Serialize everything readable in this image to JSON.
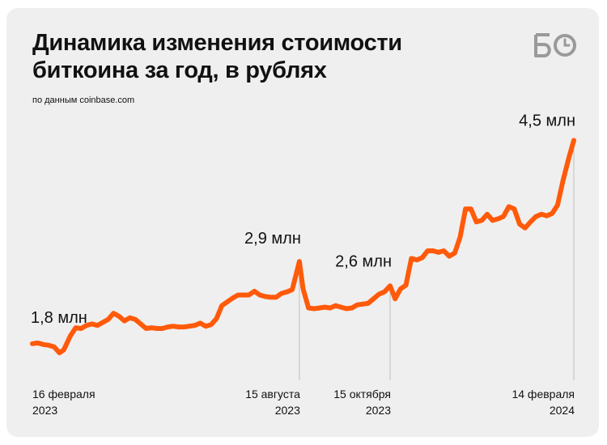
{
  "header": {
    "title_line1": "Динамика изменения стоимости",
    "title_line2": "биткоина за год, в рублях",
    "source": "по данным coinbase.com"
  },
  "logo": {
    "icon": "bo-logo-icon",
    "color": "#9a9a9a"
  },
  "colors": {
    "line": "#ff5a0a",
    "guide": "#c8c8c8",
    "text": "#111111",
    "background": "#efefef"
  },
  "chart_data": {
    "type": "line",
    "title": "Динамика изменения стоимости биткоина за год, в рублях",
    "xlabel": "",
    "ylabel": "",
    "grid": false,
    "legend": "none",
    "ylim": [
      1.3,
      4.7
    ],
    "x_ticks": [
      {
        "line1": "16 февраля",
        "line2": "2023",
        "t": 0,
        "align": "start"
      },
      {
        "line1": "15 августа",
        "line2": "2023",
        "t": 0.4931,
        "align": "end"
      },
      {
        "line1": "15 октября",
        "line2": "2023",
        "t": 0.6607,
        "align": "end"
      },
      {
        "line1": "14 февраля",
        "line2": "2024",
        "t": 1,
        "align": "end"
      }
    ],
    "callouts": [
      {
        "label": "1,8 млн",
        "t": 0,
        "value": 1.78
      },
      {
        "label": "2,9 млн",
        "t": 0.4931,
        "value": 2.86
      },
      {
        "label": "2,6 млн",
        "t": 0.6607,
        "value": 2.54
      },
      {
        "label": "4,5 млн",
        "t": 1,
        "value": 4.45
      }
    ],
    "series": [
      {
        "points": [
          [
            0.0,
            1.78
          ],
          [
            0.01,
            1.79
          ],
          [
            0.02,
            1.77
          ],
          [
            0.03,
            1.76
          ],
          [
            0.04,
            1.74
          ],
          [
            0.05,
            1.66
          ],
          [
            0.058,
            1.7
          ],
          [
            0.07,
            1.88
          ],
          [
            0.08,
            1.99
          ],
          [
            0.09,
            1.98
          ],
          [
            0.1,
            2.02
          ],
          [
            0.11,
            2.04
          ],
          [
            0.12,
            2.02
          ],
          [
            0.14,
            2.1
          ],
          [
            0.15,
            2.18
          ],
          [
            0.16,
            2.14
          ],
          [
            0.17,
            2.08
          ],
          [
            0.18,
            2.12
          ],
          [
            0.19,
            2.1
          ],
          [
            0.2,
            2.04
          ],
          [
            0.21,
            1.98
          ],
          [
            0.22,
            1.99
          ],
          [
            0.23,
            1.98
          ],
          [
            0.24,
            1.98
          ],
          [
            0.25,
            2.0
          ],
          [
            0.26,
            2.01
          ],
          [
            0.27,
            2.0
          ],
          [
            0.28,
            2.0
          ],
          [
            0.3,
            2.02
          ],
          [
            0.31,
            2.05
          ],
          [
            0.32,
            2.01
          ],
          [
            0.33,
            2.03
          ],
          [
            0.34,
            2.11
          ],
          [
            0.35,
            2.28
          ],
          [
            0.36,
            2.33
          ],
          [
            0.37,
            2.38
          ],
          [
            0.38,
            2.42
          ],
          [
            0.39,
            2.42
          ],
          [
            0.4,
            2.42
          ],
          [
            0.41,
            2.47
          ],
          [
            0.42,
            2.42
          ],
          [
            0.43,
            2.4
          ],
          [
            0.44,
            2.39
          ],
          [
            0.45,
            2.39
          ],
          [
            0.46,
            2.44
          ],
          [
            0.47,
            2.46
          ],
          [
            0.48,
            2.49
          ],
          [
            0.4931,
            2.86
          ],
          [
            0.5,
            2.5
          ],
          [
            0.51,
            2.25
          ],
          [
            0.52,
            2.24
          ],
          [
            0.53,
            2.25
          ],
          [
            0.54,
            2.26
          ],
          [
            0.55,
            2.25
          ],
          [
            0.56,
            2.28
          ],
          [
            0.57,
            2.26
          ],
          [
            0.58,
            2.24
          ],
          [
            0.59,
            2.25
          ],
          [
            0.6,
            2.29
          ],
          [
            0.61,
            2.3
          ],
          [
            0.62,
            2.31
          ],
          [
            0.63,
            2.37
          ],
          [
            0.64,
            2.43
          ],
          [
            0.65,
            2.46
          ],
          [
            0.6607,
            2.54
          ],
          [
            0.67,
            2.37
          ],
          [
            0.68,
            2.5
          ],
          [
            0.69,
            2.55
          ],
          [
            0.7,
            2.9
          ],
          [
            0.71,
            2.88
          ],
          [
            0.72,
            2.91
          ],
          [
            0.73,
            3.0
          ],
          [
            0.74,
            3.0
          ],
          [
            0.75,
            2.98
          ],
          [
            0.76,
            3.0
          ],
          [
            0.77,
            2.93
          ],
          [
            0.78,
            2.97
          ],
          [
            0.79,
            3.18
          ],
          [
            0.8,
            3.55
          ],
          [
            0.81,
            3.55
          ],
          [
            0.82,
            3.38
          ],
          [
            0.83,
            3.4
          ],
          [
            0.84,
            3.48
          ],
          [
            0.85,
            3.4
          ],
          [
            0.86,
            3.42
          ],
          [
            0.87,
            3.45
          ],
          [
            0.88,
            3.58
          ],
          [
            0.89,
            3.55
          ],
          [
            0.9,
            3.35
          ],
          [
            0.91,
            3.3
          ],
          [
            0.92,
            3.38
          ],
          [
            0.93,
            3.45
          ],
          [
            0.94,
            3.48
          ],
          [
            0.95,
            3.46
          ],
          [
            0.96,
            3.49
          ],
          [
            0.97,
            3.6
          ],
          [
            0.98,
            3.92
          ],
          [
            0.99,
            4.2
          ],
          [
            1.0,
            4.45
          ]
        ]
      }
    ]
  }
}
